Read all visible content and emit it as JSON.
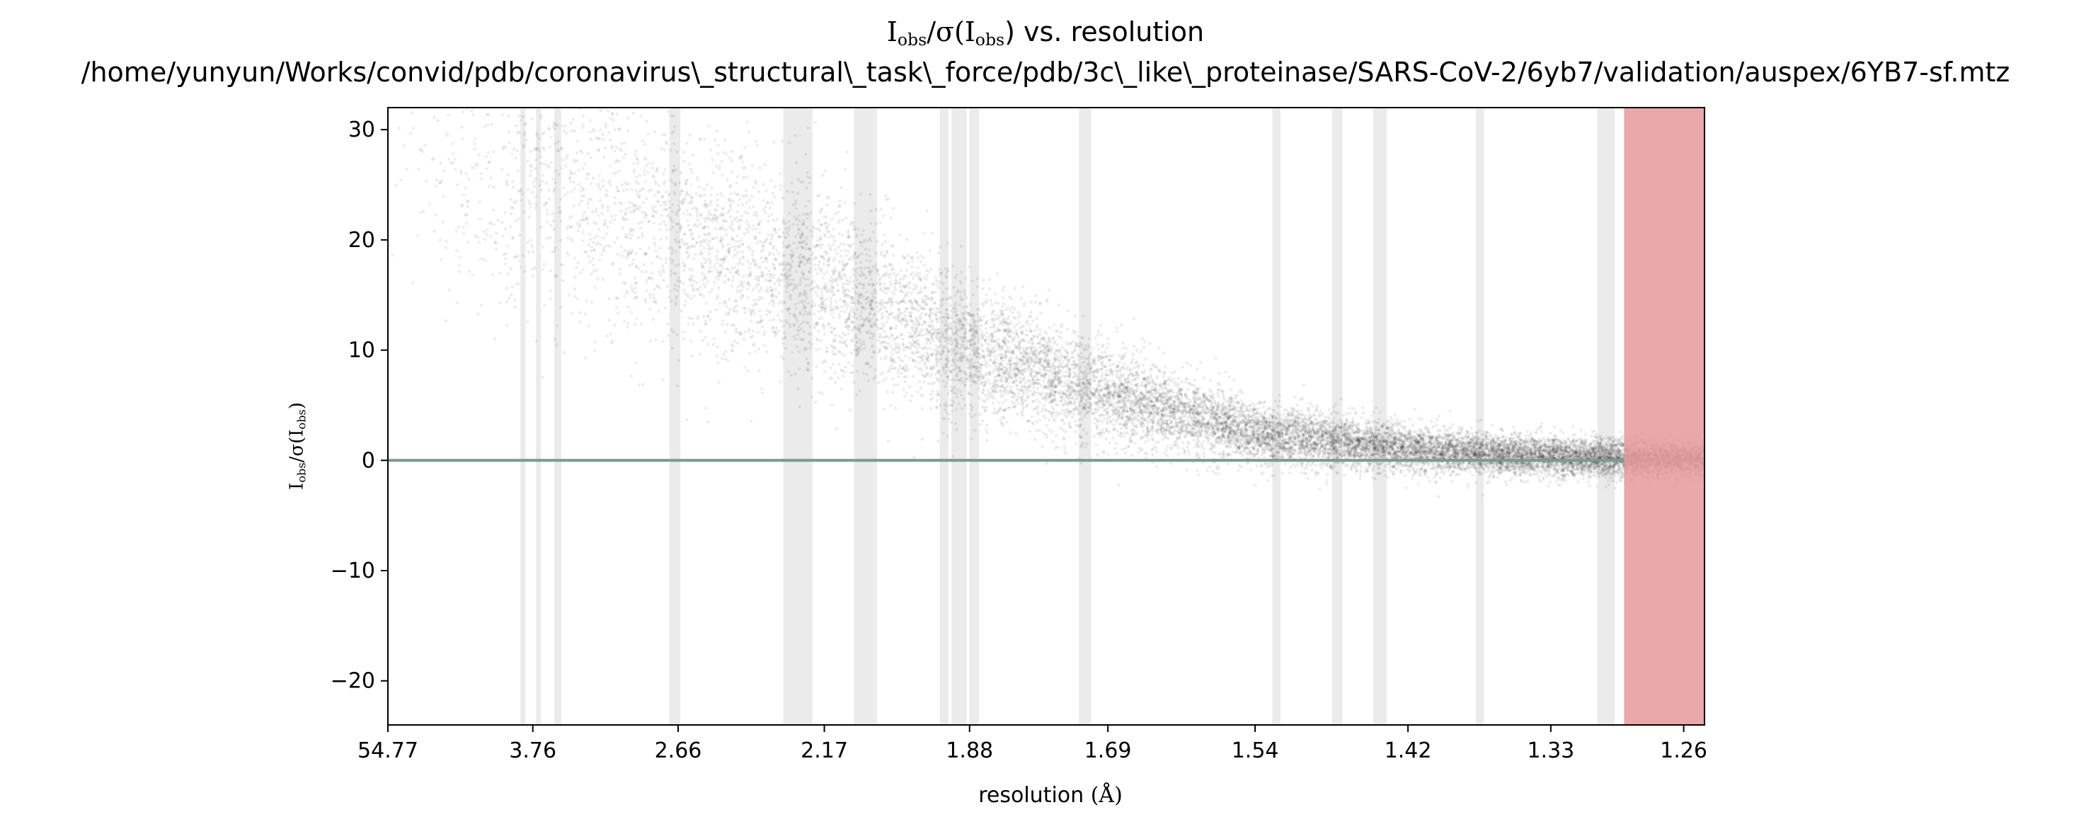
{
  "chart_data": {
    "type": "scatter",
    "title": {
      "line1_main": "I",
      "line1_sub1": "obs",
      "line1_mid": "/σ(I",
      "line1_sub2": "obs",
      "line1_end": ") vs. resolution",
      "line2": "/home/yunyun/Works/convid/pdb/coronavirus\\_structural\\_task\\_force/pdb/3c\\_like\\_proteinase/SARS-CoV-2/6yb7/validation/auspex/6YB7-sf.mtz"
    },
    "xlabel": {
      "text": "resolution ",
      "unit": "(Å)"
    },
    "ylabel": {
      "main": "I",
      "sub1": "obs",
      "mid": "/σ(I",
      "sub2": "obs",
      "end": ")"
    },
    "x_scale": "1/d^2",
    "x_ticks": [
      "54.77",
      "3.76",
      "2.66",
      "2.17",
      "1.88",
      "1.69",
      "1.54",
      "1.42",
      "1.33",
      "1.26"
    ],
    "xlim": [
      54.77,
      1.25
    ],
    "ylim": [
      -24,
      32
    ],
    "y_ticks": [
      -20,
      -10,
      0,
      10,
      20,
      30
    ],
    "zero_line_y": 0,
    "ice_ring_bands": [
      [
        3.93,
        3.86
      ],
      [
        3.72,
        3.66
      ],
      [
        3.51,
        3.44
      ],
      [
        2.7,
        2.65
      ],
      [
        2.28,
        2.2
      ],
      [
        2.1,
        2.05
      ],
      [
        1.93,
        1.915
      ],
      [
        1.91,
        1.885
      ],
      [
        1.88,
        1.865
      ],
      [
        1.725,
        1.71
      ],
      [
        1.525,
        1.518
      ],
      [
        1.476,
        1.468
      ],
      [
        1.445,
        1.435
      ],
      [
        1.375,
        1.37
      ],
      [
        1.304,
        1.295
      ]
    ],
    "high_resolution_cutoff_band": [
      1.29,
      1.25
    ],
    "point_cloud_mean": [
      {
        "x": 54.77,
        "y": 27
      },
      {
        "x": 5.0,
        "y": 25
      },
      {
        "x": 3.76,
        "y": 25
      },
      {
        "x": 3.2,
        "y": 24
      },
      {
        "x": 2.66,
        "y": 20
      },
      {
        "x": 2.17,
        "y": 16
      },
      {
        "x": 1.88,
        "y": 10
      },
      {
        "x": 1.69,
        "y": 6
      },
      {
        "x": 1.54,
        "y": 2.5
      },
      {
        "x": 1.42,
        "y": 1
      },
      {
        "x": 1.33,
        "y": 0.3
      },
      {
        "x": 1.26,
        "y": 0.1
      }
    ],
    "colors": {
      "points": "#000000",
      "ice_band": "#ebebeb",
      "cutoff_band": "#e8999c",
      "zero_line": "#7a9a8e",
      "axes": "#000000"
    }
  }
}
